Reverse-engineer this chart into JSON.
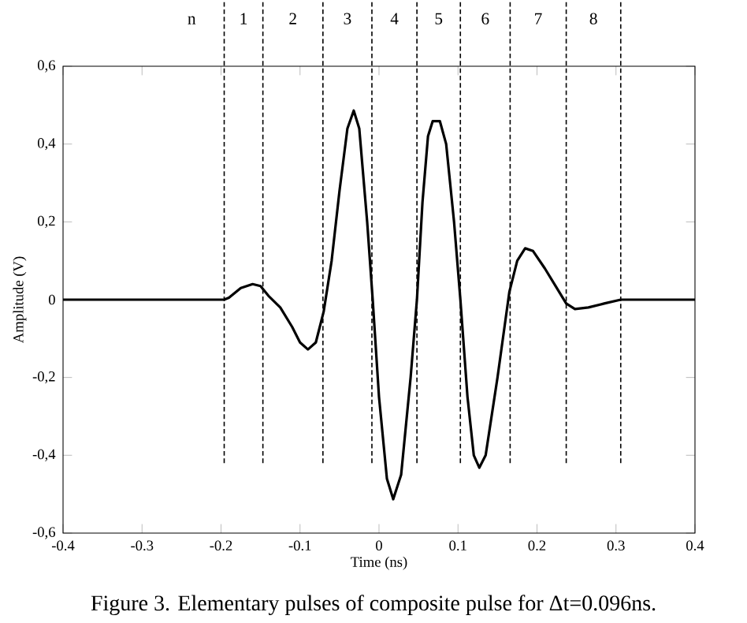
{
  "chart_data": {
    "type": "line",
    "xlabel": "Time (ns)",
    "ylabel": "Amplitude (V)",
    "xlim": [
      -0.4,
      0.4
    ],
    "ylim": [
      -0.6,
      0.6
    ],
    "xticks": [
      -0.4,
      -0.3,
      -0.2,
      -0.1,
      0,
      0.1,
      0.2,
      0.3,
      0.4
    ],
    "yticks": [
      {
        "value": -0.6,
        "label": "-0,6"
      },
      {
        "value": -0.4,
        "label": "-0,4"
      },
      {
        "value": -0.2,
        "label": "-0,2"
      },
      {
        "value": 0,
        "label": "0"
      },
      {
        "value": 0.2,
        "label": "0,2"
      },
      {
        "value": 0.4,
        "label": "0,4"
      },
      {
        "value": 0.6,
        "label": "0,6"
      }
    ],
    "grid": false,
    "marker": "none",
    "line_style": "solid",
    "series": [
      {
        "color": "#000000",
        "x": [
          -0.4,
          -0.196,
          -0.19,
          -0.175,
          -0.16,
          -0.15,
          -0.14,
          -0.125,
          -0.11,
          -0.1,
          -0.09,
          -0.08,
          -0.07,
          -0.06,
          -0.05,
          -0.04,
          -0.032,
          -0.025,
          -0.015,
          -0.008,
          0,
          0.01,
          0.018,
          0.028,
          0.04,
          0.048,
          0.055,
          0.062,
          0.068,
          0.077,
          0.085,
          0.095,
          0.103,
          0.112,
          0.12,
          0.127,
          0.135,
          0.15,
          0.165,
          0.175,
          0.185,
          0.195,
          0.21,
          0.225,
          0.237,
          0.248,
          0.265,
          0.285,
          0.306,
          0.4
        ],
        "values": [
          0,
          0,
          0.005,
          0.03,
          0.04,
          0.035,
          0.01,
          -0.02,
          -0.07,
          -0.11,
          -0.128,
          -0.11,
          -0.03,
          0.1,
          0.28,
          0.44,
          0.486,
          0.44,
          0.2,
          0.0,
          -0.25,
          -0.46,
          -0.513,
          -0.45,
          -0.2,
          0.0,
          0.25,
          0.42,
          0.459,
          0.459,
          0.4,
          0.2,
          0.0,
          -0.25,
          -0.4,
          -0.432,
          -0.4,
          -0.2,
          0.02,
          0.1,
          0.132,
          0.125,
          0.08,
          0.03,
          -0.01,
          -0.024,
          -0.02,
          -0.01,
          0,
          0
        ]
      }
    ],
    "ref_lines": [
      {
        "axis": "x",
        "value": -0.196,
        "line_style": "dashed"
      },
      {
        "axis": "x",
        "value": -0.147,
        "line_style": "dashed"
      },
      {
        "axis": "x",
        "value": -0.071,
        "line_style": "dashed"
      },
      {
        "axis": "x",
        "value": -0.009,
        "line_style": "dashed"
      },
      {
        "axis": "x",
        "value": 0.048,
        "line_style": "dashed"
      },
      {
        "axis": "x",
        "value": 0.103,
        "line_style": "dashed"
      },
      {
        "axis": "x",
        "value": 0.166,
        "line_style": "dashed"
      },
      {
        "axis": "x",
        "value": 0.237,
        "line_style": "dashed"
      },
      {
        "axis": "x",
        "value": 0.306,
        "line_style": "dashed"
      }
    ],
    "annotations": [
      "n",
      "1",
      "2",
      "3",
      "4",
      "5",
      "6",
      "7",
      "8",
      "Figure 3.   Elementary pulses of composite pulse for Δt=0.096ns."
    ]
  }
}
